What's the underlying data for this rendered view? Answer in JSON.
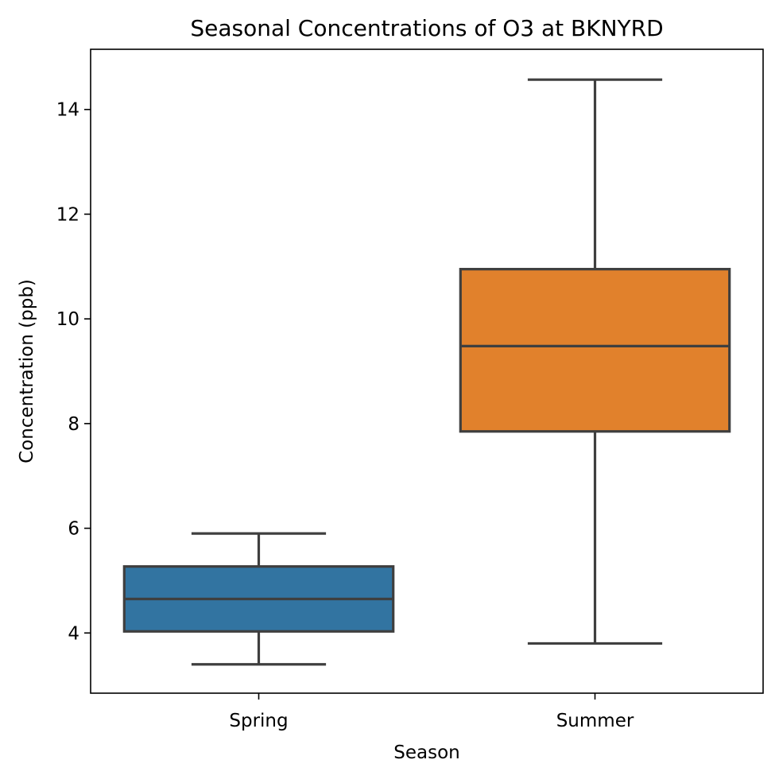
{
  "chart_data": {
    "type": "box",
    "title": "Seasonal Concentrations of O3 at BKNYRD",
    "xlabel": "Season",
    "ylabel": "Concentration (ppb)",
    "ylim": [
      2.85,
      15.15
    ],
    "yticks": [
      4,
      6,
      8,
      10,
      12,
      14
    ],
    "grid": false,
    "categories": [
      "Spring",
      "Summer"
    ],
    "boxes": [
      {
        "category": "Spring",
        "whisker_low": 3.4,
        "q1": 4.03,
        "median": 4.65,
        "q3": 5.27,
        "whisker_high": 5.9,
        "color": "#3274a1"
      },
      {
        "category": "Summer",
        "whisker_low": 3.8,
        "q1": 7.85,
        "median": 9.48,
        "q3": 10.95,
        "whisker_high": 14.57,
        "color": "#e1812c"
      }
    ],
    "line_color": "#3f3f3f"
  }
}
